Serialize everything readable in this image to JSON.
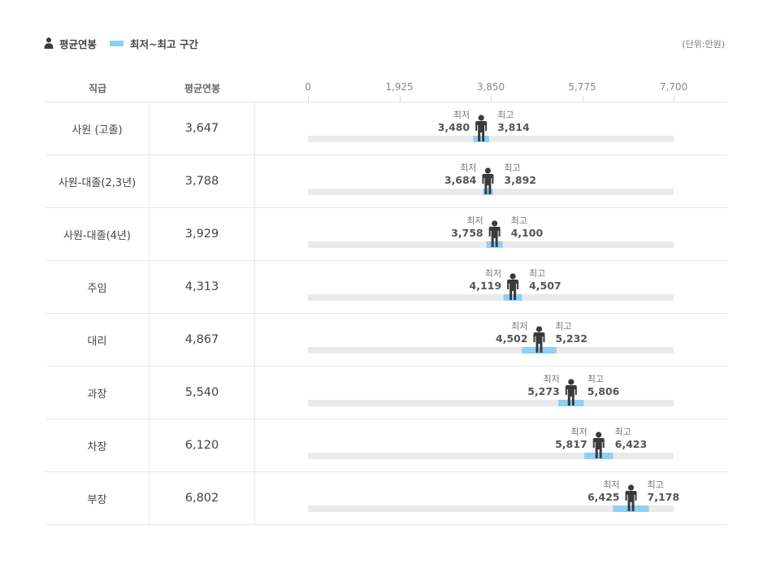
{
  "legend": {
    "avg_label": "평균연봉",
    "range_label": "최저~최고 구간",
    "person_icon": "person-icon",
    "range_color": "#8fd0f7"
  },
  "unit": "(단위:만원)",
  "columns": {
    "grade": "직급",
    "avg": "평균연봉"
  },
  "labels": {
    "min": "최저",
    "max": "최고"
  },
  "colors": {
    "track": "#eaeaea",
    "range": "#8fd0f7",
    "person": "#3a3a3a"
  },
  "chart_data": {
    "type": "bar",
    "xlim": [
      0,
      7700
    ],
    "ticks": [
      "0",
      "1,925",
      "3,850",
      "5,775",
      "7,700"
    ],
    "tick_values": [
      0,
      1925,
      3850,
      5775,
      7700
    ],
    "categories": [
      "사원 (고졸)",
      "사원-대졸(2,3년)",
      "사원-대졸(4년)",
      "주임",
      "대리",
      "과장",
      "차장",
      "부장"
    ],
    "avg": [
      3647,
      3788,
      3929,
      4313,
      4867,
      5540,
      6120,
      6802
    ],
    "avg_text": [
      "3,647",
      "3,788",
      "3,929",
      "4,313",
      "4,867",
      "5,540",
      "6,120",
      "6,802"
    ],
    "min": [
      3480,
      3684,
      3758,
      4119,
      4502,
      5273,
      5817,
      6425
    ],
    "min_text": [
      "3,480",
      "3,684",
      "3,758",
      "4,119",
      "4,502",
      "5,273",
      "5,817",
      "6,425"
    ],
    "max": [
      3814,
      3892,
      4100,
      4507,
      5232,
      5806,
      6423,
      7178
    ],
    "max_text": [
      "3,814",
      "3,892",
      "4,100",
      "4,507",
      "5,232",
      "5,806",
      "6,423",
      "7,178"
    ]
  }
}
